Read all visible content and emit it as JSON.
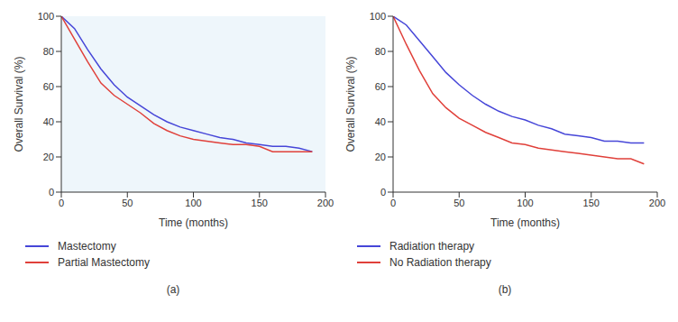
{
  "chart_data": [
    {
      "type": "line",
      "title": "(a)",
      "x_label": "Time (months)",
      "y_label": "Overall Survival (%)",
      "x": [
        0,
        10,
        20,
        30,
        40,
        50,
        60,
        70,
        80,
        90,
        100,
        110,
        120,
        130,
        140,
        150,
        160,
        170,
        180,
        190
      ],
      "series": [
        {
          "name": "Mastectomy",
          "color": "#4646d8",
          "values": [
            100,
            93,
            81,
            70,
            61,
            54,
            49,
            44,
            40,
            37,
            35,
            33,
            31,
            30,
            28,
            27,
            26,
            26,
            25,
            23
          ]
        },
        {
          "name": "Partial Mastectomy",
          "color": "#e0403a",
          "values": [
            100,
            87,
            74,
            62,
            55,
            50,
            45,
            39,
            35,
            32,
            30,
            29,
            28,
            27,
            27,
            26,
            23,
            23,
            23,
            23
          ]
        }
      ],
      "xlim": [
        0,
        200
      ],
      "xticks": [
        0,
        50,
        100,
        150,
        200
      ],
      "ylim": [
        0,
        100
      ],
      "yticks": [
        0,
        20,
        40,
        60,
        80,
        100
      ],
      "grid": false,
      "legend": "bottom left"
    },
    {
      "type": "line",
      "title": "(b)",
      "x_label": "Time (months)",
      "y_label": "Overall Survival (%)",
      "x": [
        0,
        10,
        20,
        30,
        40,
        50,
        60,
        70,
        80,
        90,
        100,
        110,
        120,
        130,
        140,
        150,
        160,
        170,
        180,
        190
      ],
      "series": [
        {
          "name": "Radiation therapy",
          "color": "#4646d8",
          "values": [
            100,
            95,
            86,
            77,
            68,
            61,
            55,
            50,
            46,
            43,
            41,
            38,
            36,
            33,
            32,
            31,
            29,
            29,
            28,
            28
          ]
        },
        {
          "name": "No Radiation therapy",
          "color": "#e0403a",
          "values": [
            100,
            84,
            69,
            56,
            48,
            42,
            38,
            34,
            31,
            28,
            27,
            25,
            24,
            23,
            22,
            21,
            20,
            19,
            19,
            16
          ]
        }
      ],
      "xlim": [
        0,
        200
      ],
      "xticks": [
        0,
        50,
        100,
        150,
        200
      ],
      "ylim": [
        0,
        100
      ],
      "yticks": [
        0,
        20,
        40,
        60,
        80,
        100
      ],
      "grid": false,
      "legend": "bottom left"
    }
  ]
}
